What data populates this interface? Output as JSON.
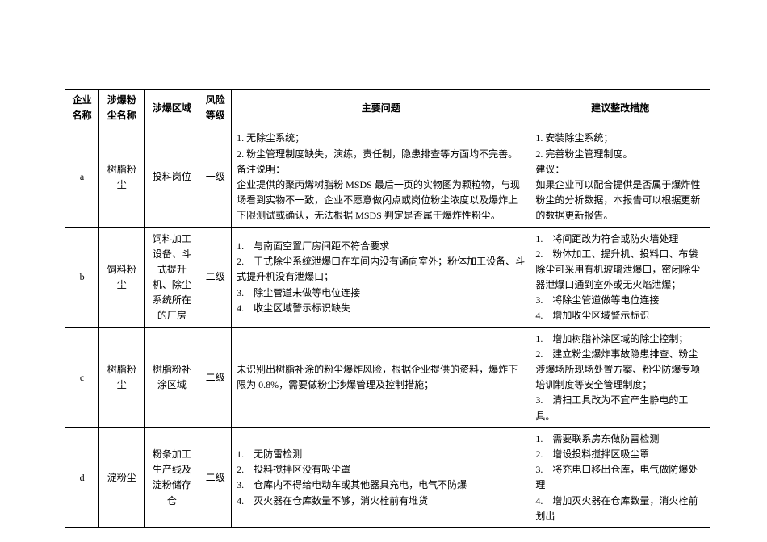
{
  "headers": {
    "company": "企业名称",
    "dust": "涉爆粉尘名称",
    "area": "涉爆区域",
    "risk": "风险等级",
    "issues": "主要问题",
    "measures": "建议整改措施"
  },
  "rows": [
    {
      "company": "a",
      "dust": "树脂粉尘",
      "area": "投料岗位",
      "risk": "一级",
      "issues": "1. 无除尘系统；\n2. 粉尘管理制度缺失，演练，责任制，隐患排查等方面均不完善。\n备注说明：\n企业提供的聚丙烯树脂粉 MSDS 最后一页的实物图为颗粒物，与现场看到实物不一致，企业不愿意做闪点或岗位粉尘浓度以及爆炸上下限测试或确认，无法根据 MSDS 判定是否属于爆炸性粉尘。",
      "measures": "1. 安装除尘系统；\n2. 完善粉尘管理制度。\n建议：\n如果企业可以配合提供是否属于爆炸性粉尘的分析数据，本报告可以根据更新的数据更新报告。"
    },
    {
      "company": "b",
      "dust": "饲料粉尘",
      "area": "饲料加工设备、斗式提升机、除尘系统所在的厂房",
      "risk": "二级",
      "issues": "1.　与南面空置厂房间距不符合要求\n2.　干式除尘系统泄爆口在车间内没有通向室外；粉体加工设备、斗式提升机没有泄爆口；\n3.　除尘管道未做等电位连接\n4.　收尘区域警示标识缺失",
      "measures": "1.　将间距改为符合或防火墙处理\n2.　粉体加工、提升机、投料口、布袋除尘可采用有机玻璃泄爆口，密闭除尘器泄爆口通到室外或无火焰泄爆；\n3.　将除尘管道做等电位连接\n4.　增加收尘区域警示标识"
    },
    {
      "company": "c",
      "dust": "树脂粉尘",
      "area": "树脂粉补涂区域",
      "risk": "二级",
      "issues": "未识别出树脂补涂的粉尘爆炸风险，根据企业提供的资料，爆炸下限为 0.8%，需要做粉尘涉爆管理及控制措施；",
      "measures": "1.　增加树脂补涂区域的除尘控制；\n2.　建立粉尘爆炸事故隐患排查、粉尘涉爆场所现场处置方案、粉尘防爆专项培训制度等安全管理制度；\n3.　清扫工具改为不宜产生静电的工具。"
    },
    {
      "company": "d",
      "dust": "淀粉尘",
      "area": "粉条加工生产线及淀粉储存仓",
      "risk": "二级",
      "issues": "1.　无防雷检测\n2.　投料搅拌区没有吸尘罩\n3.　仓库内不得给电动车或其他器具充电，电气不防爆\n4.　灭火器在仓库数量不够，消火栓前有堆货",
      "measures": "1.　需要联系房东做防雷检测\n2.　增设投料搅拌区吸尘罩\n3.　将充电口移出仓库，电气做防爆处理\n4.　增加灭火器在仓库数量，消火栓前划出"
    }
  ]
}
